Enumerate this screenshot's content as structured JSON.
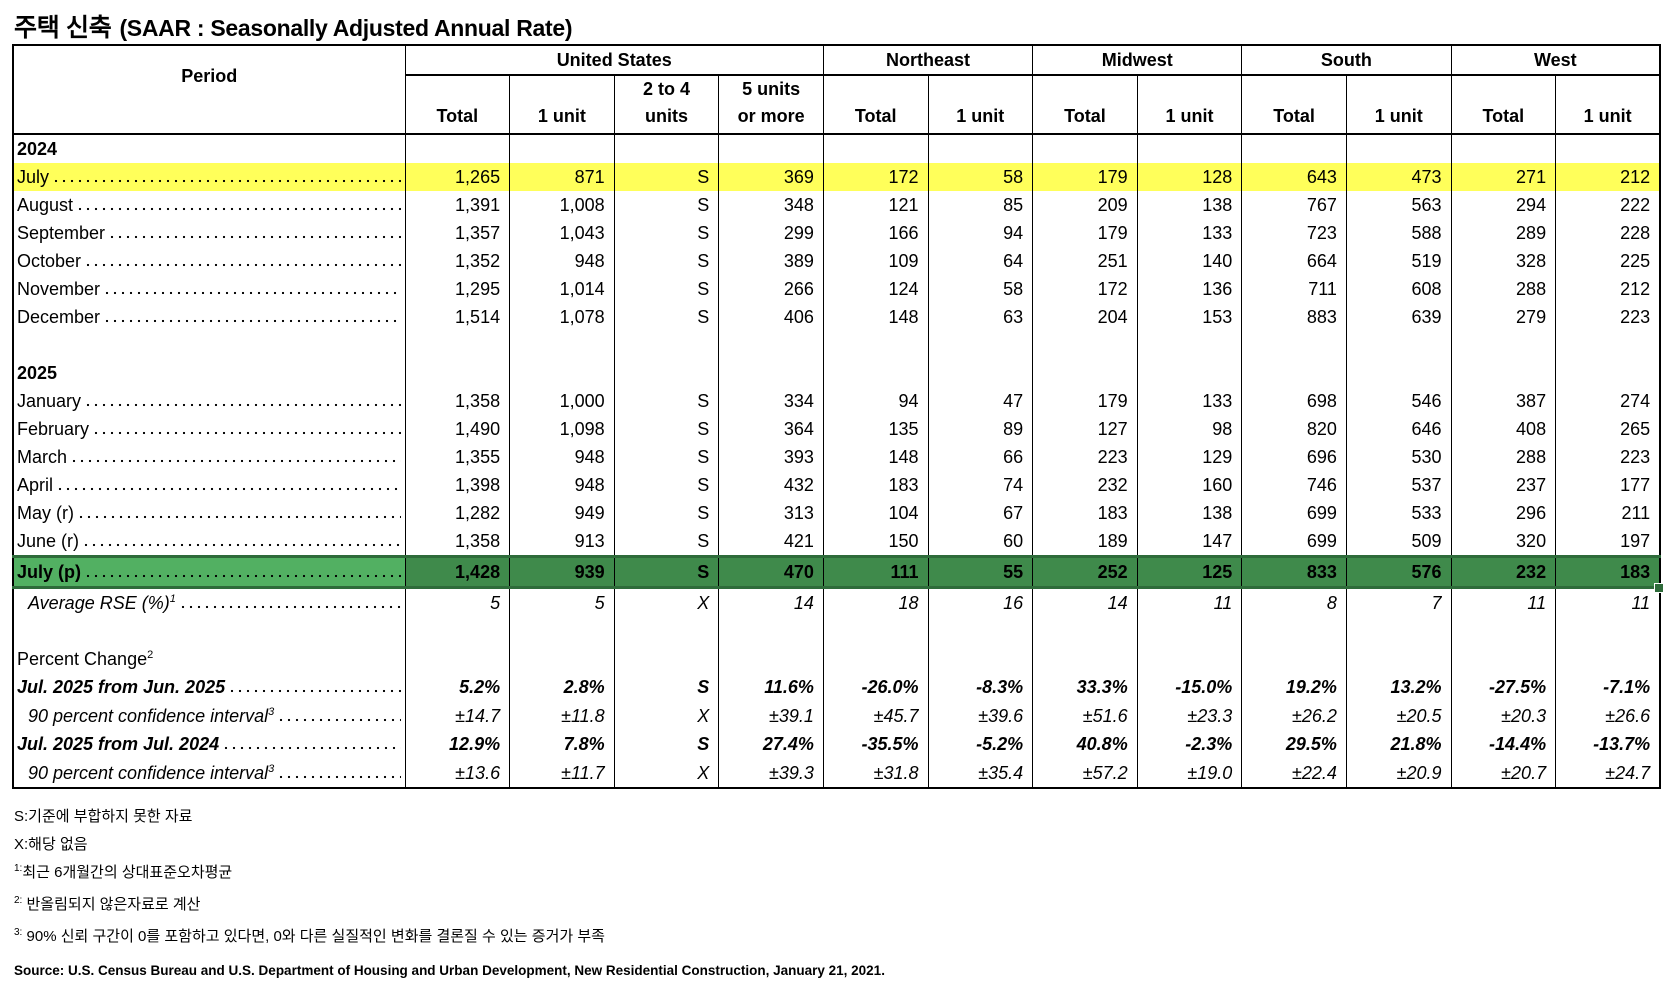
{
  "title": {
    "main": "주택 신축",
    "subtitle": "(SAAR : Seasonally Adjusted Annual Rate)"
  },
  "header": {
    "period": "Period",
    "regions": [
      {
        "name": "United States",
        "span": 4
      },
      {
        "name": "Northeast",
        "span": 2
      },
      {
        "name": "Midwest",
        "span": 2
      },
      {
        "name": "South",
        "span": 2
      },
      {
        "name": "West",
        "span": 2
      }
    ],
    "columns": [
      "Total",
      "1 unit",
      "2 to 4\nunits",
      "5 units\nor more",
      "Total",
      "1 unit",
      "Total",
      "1 unit",
      "Total",
      "1 unit",
      "Total",
      "1 unit"
    ]
  },
  "rows": [
    {
      "type": "year",
      "label": "2024"
    },
    {
      "type": "yellow",
      "label": "July",
      "values": [
        "1,265",
        "871",
        "S",
        "369",
        "172",
        "58",
        "179",
        "128",
        "643",
        "473",
        "271",
        "212"
      ]
    },
    {
      "type": "data",
      "label": "August",
      "values": [
        "1,391",
        "1,008",
        "S",
        "348",
        "121",
        "85",
        "209",
        "138",
        "767",
        "563",
        "294",
        "222"
      ]
    },
    {
      "type": "data",
      "label": "September",
      "values": [
        "1,357",
        "1,043",
        "S",
        "299",
        "166",
        "94",
        "179",
        "133",
        "723",
        "588",
        "289",
        "228"
      ]
    },
    {
      "type": "data",
      "label": "October",
      "values": [
        "1,352",
        "948",
        "S",
        "389",
        "109",
        "64",
        "251",
        "140",
        "664",
        "519",
        "328",
        "225"
      ]
    },
    {
      "type": "data",
      "label": "November",
      "values": [
        "1,295",
        "1,014",
        "S",
        "266",
        "124",
        "58",
        "172",
        "136",
        "711",
        "608",
        "288",
        "212"
      ]
    },
    {
      "type": "data",
      "label": "December",
      "values": [
        "1,514",
        "1,078",
        "S",
        "406",
        "148",
        "63",
        "204",
        "153",
        "883",
        "639",
        "279",
        "223"
      ]
    },
    {
      "type": "blank"
    },
    {
      "type": "year",
      "label": "2025"
    },
    {
      "type": "data",
      "label": "January",
      "values": [
        "1,358",
        "1,000",
        "S",
        "334",
        "94",
        "47",
        "179",
        "133",
        "698",
        "546",
        "387",
        "274"
      ]
    },
    {
      "type": "data",
      "label": "February",
      "values": [
        "1,490",
        "1,098",
        "S",
        "364",
        "135",
        "89",
        "127",
        "98",
        "820",
        "646",
        "408",
        "265"
      ]
    },
    {
      "type": "data",
      "label": "March",
      "values": [
        "1,355",
        "948",
        "S",
        "393",
        "148",
        "66",
        "223",
        "129",
        "696",
        "530",
        "288",
        "223"
      ]
    },
    {
      "type": "data",
      "label": "April",
      "values": [
        "1,398",
        "948",
        "S",
        "432",
        "183",
        "74",
        "232",
        "160",
        "746",
        "537",
        "237",
        "177"
      ]
    },
    {
      "type": "data",
      "label": "May (r)",
      "values": [
        "1,282",
        "949",
        "S",
        "313",
        "104",
        "67",
        "183",
        "138",
        "699",
        "533",
        "296",
        "211"
      ]
    },
    {
      "type": "data",
      "label": "June (r)",
      "values": [
        "1,358",
        "913",
        "S",
        "421",
        "150",
        "60",
        "189",
        "147",
        "699",
        "509",
        "320",
        "197"
      ]
    },
    {
      "type": "green",
      "label": "July (p)",
      "values": [
        "1,428",
        "939",
        "S",
        "470",
        "111",
        "55",
        "252",
        "125",
        "833",
        "576",
        "232",
        "183"
      ]
    },
    {
      "type": "rse",
      "label": "Average RSE (%)",
      "sup": "1",
      "values": [
        "5",
        "5",
        "X",
        "14",
        "18",
        "16",
        "14",
        "11",
        "8",
        "7",
        "11",
        "11"
      ]
    },
    {
      "type": "pcthead",
      "label": "Percent Change",
      "sup": "2"
    },
    {
      "type": "pct",
      "label": "Jul. 2025 from Jun. 2025",
      "values": [
        "5.2%",
        "2.8%",
        "S",
        "11.6%",
        "-26.0%",
        "-8.3%",
        "33.3%",
        "-15.0%",
        "19.2%",
        "13.2%",
        "-27.5%",
        "-7.1%"
      ]
    },
    {
      "type": "ci",
      "label": "90 percent confidence interval",
      "sup": "3",
      "values": [
        "±14.7",
        "±11.8",
        "X",
        "±39.1",
        "±45.7",
        "±39.6",
        "±51.6",
        "±23.3",
        "±26.2",
        "±20.5",
        "±20.3",
        "±26.6"
      ]
    },
    {
      "type": "pct",
      "label": "Jul. 2025 from Jul. 2024",
      "values": [
        "12.9%",
        "7.8%",
        "S",
        "27.4%",
        "-35.5%",
        "-5.2%",
        "40.8%",
        "-2.3%",
        "29.5%",
        "21.8%",
        "-14.4%",
        "-13.7%"
      ]
    },
    {
      "type": "ci",
      "label": "90 percent confidence interval",
      "sup": "3",
      "values": [
        "±13.6",
        "±11.7",
        "X",
        "±39.3",
        "±31.8",
        "±35.4",
        "±57.2",
        "±19.0",
        "±22.4",
        "±20.9",
        "±20.7",
        "±24.7"
      ]
    }
  ],
  "footnotes": [
    {
      "sup": "",
      "text": "S:기준에 부합하지 못한 자료"
    },
    {
      "sup": "",
      "text": "X:해당 없음"
    },
    {
      "sup": "1:",
      "text": "최근 6개월간의 상대표준오차평균"
    },
    {
      "sup": "2:",
      "text": " 반올림되지 않은자료로 계산"
    },
    {
      "sup": "3:",
      "text": " 90% 신뢰 구간이 0를 포함하고 있다면, 0와 다른 실질적인 변화를 결론질 수 있는 증거가 부족"
    }
  ],
  "source": "Source: U.S. Census Bureau and U.S. Department of Housing and Urban Development, New Residential Construction, January 21, 2021.",
  "colors": {
    "highlight_yellow": "#FFFF5A",
    "highlight_green": "#3F8A4B"
  }
}
